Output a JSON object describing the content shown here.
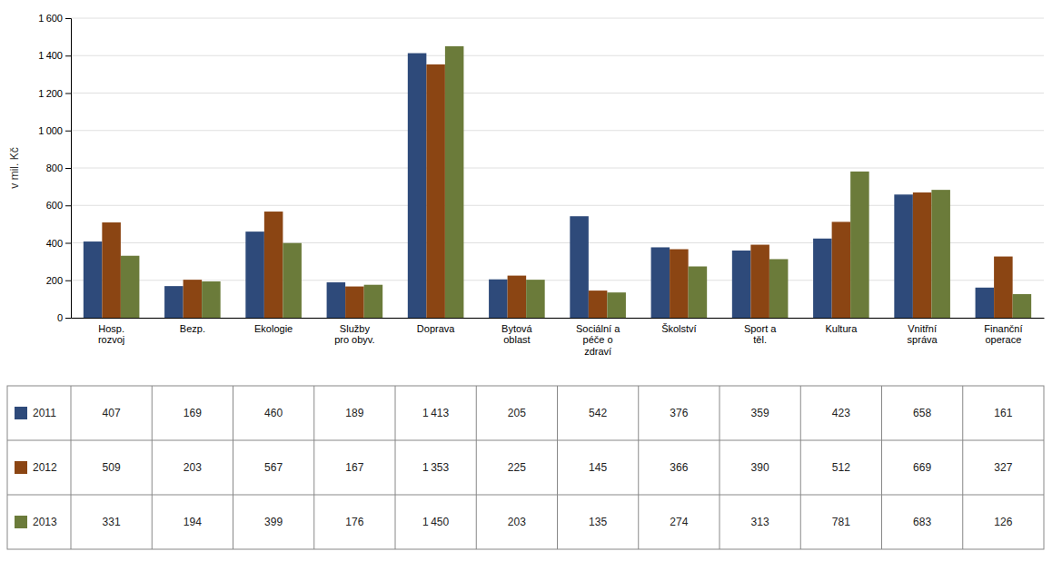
{
  "chart_data": {
    "type": "bar",
    "categories": [
      "Hosp.\nrozvoj",
      "Bezp.",
      "Ekologie",
      "Služby\npro obyv.",
      "Doprava",
      "Bytová\noblast",
      "Sociální a\npéče o\nzdraví",
      "Školství",
      "Sport a\ntěl.",
      "Kultura",
      "Vnitřní\nspráva",
      "Finanční\noperace"
    ],
    "series": [
      {
        "name": "2011",
        "color": "#2E4A7A",
        "values": [
          407,
          169,
          460,
          189,
          1413,
          205,
          542,
          376,
          359,
          423,
          658,
          161
        ],
        "value_labels": [
          "407",
          "169",
          "460",
          "189",
          "1 413",
          "205",
          "542",
          "376",
          "359",
          "423",
          "658",
          "161"
        ]
      },
      {
        "name": "2012",
        "color": "#8B4513",
        "values": [
          509,
          203,
          567,
          167,
          1353,
          225,
          145,
          366,
          390,
          512,
          669,
          327
        ],
        "value_labels": [
          "509",
          "203",
          "567",
          "167",
          "1 353",
          "225",
          "145",
          "366",
          "390",
          "512",
          "669",
          "327"
        ]
      },
      {
        "name": "2013",
        "color": "#6B7B3A",
        "values": [
          331,
          194,
          399,
          176,
          1450,
          203,
          135,
          274,
          313,
          781,
          683,
          126
        ],
        "value_labels": [
          "331",
          "194",
          "399",
          "176",
          "1 450",
          "203",
          "135",
          "274",
          "313",
          "781",
          "683",
          "126"
        ]
      }
    ],
    "ylabel": "v mil. Kč",
    "ylim": [
      0,
      1600
    ],
    "yticks": [
      0,
      200,
      400,
      600,
      800,
      {
        "value": 1000,
        "label": "1 000"
      },
      {
        "value": 1200,
        "label": "1 200"
      },
      {
        "value": 1400,
        "label": "1 400"
      },
      {
        "value": 1600,
        "label": "1 600"
      }
    ],
    "grid": true,
    "data_labels": true
  }
}
